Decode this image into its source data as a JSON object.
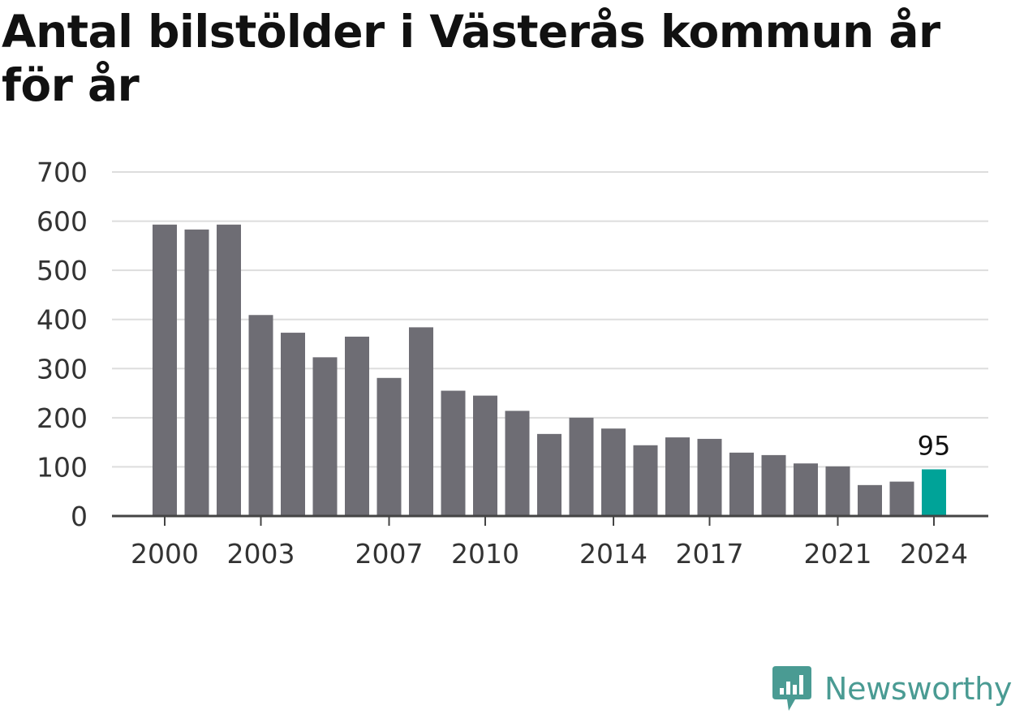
{
  "chart_data": {
    "type": "bar",
    "title": "Antal bilstölder i Västerås kommun år för år",
    "xlabel": "",
    "ylabel": "",
    "ylim": [
      0,
      700
    ],
    "yticks": [
      0,
      100,
      200,
      300,
      400,
      500,
      600,
      700
    ],
    "xtick_labels": [
      "2000",
      "2003",
      "2007",
      "2010",
      "2014",
      "2017",
      "2021",
      "2024"
    ],
    "grid": true,
    "categories": [
      "2000",
      "2001",
      "2002",
      "2003",
      "2004",
      "2005",
      "2006",
      "2007",
      "2008",
      "2009",
      "2010",
      "2011",
      "2012",
      "2013",
      "2014",
      "2015",
      "2016",
      "2017",
      "2018",
      "2019",
      "2020",
      "2021",
      "2022",
      "2023",
      "2024"
    ],
    "values": [
      593,
      583,
      593,
      409,
      373,
      323,
      365,
      281,
      384,
      255,
      245,
      214,
      167,
      200,
      178,
      144,
      160,
      157,
      129,
      124,
      107,
      101,
      63,
      70,
      95
    ],
    "highlight": {
      "category": "2024",
      "label": "95"
    },
    "colors": {
      "bar": "#6e6d74",
      "highlight": "#00a398",
      "grid": "#dddddd",
      "axis": "#444444"
    }
  },
  "brand": {
    "name": "Newsworthy",
    "logo_icon": "newsworthy-chart-bubble-icon",
    "color": "#4a9b93"
  }
}
